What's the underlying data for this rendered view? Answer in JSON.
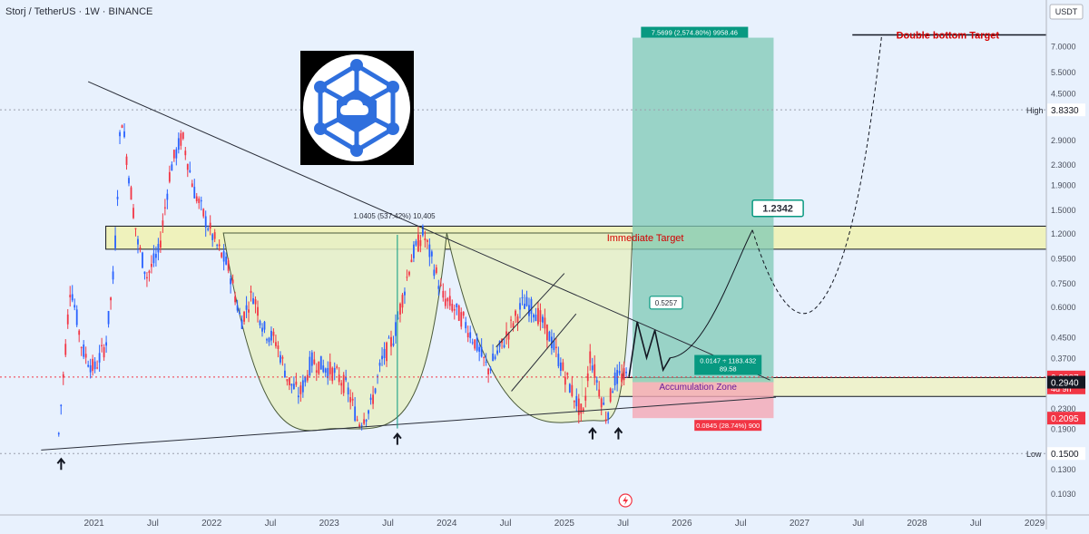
{
  "header": {
    "symbol_line": "Storj / TetherUS · 1W · BINANCE",
    "currency": "USDT"
  },
  "colors": {
    "background": "#e8f1fd",
    "bull_candle": "#2962ff",
    "bear_candle": "#f23645",
    "target_zone_fill": "#f2f2a6",
    "profit_zone_fill": "#7fc8b4",
    "loss_zone_fill": "#f4a7b4",
    "cup_fill": "#e6f0c6",
    "trendline": "#2a2e39",
    "target_label": "#d50000",
    "badge_green": "#089981",
    "badge_red": "#f23645",
    "badge_black": "#131722"
  },
  "icons": {
    "logo": "storj-cloud-hexagon-logo",
    "bottom_markers": "arrow-up-icon",
    "event_marker": "lightning-icon"
  },
  "chart_data": {
    "type": "candlestick",
    "y_scale": "log",
    "ylim": [
      0.09,
      10.8
    ],
    "y_ticks": [
      "7.0000",
      "5.5000",
      "4.5000",
      "3.8330",
      "2.9000",
      "2.3000",
      "1.9000",
      "1.5000",
      "1.2000",
      "0.9500",
      "0.7500",
      "0.6000",
      "0.4500",
      "0.3700",
      "0.3087",
      "0.2940",
      "0.2300",
      "0.2095",
      "0.1900",
      "0.1500",
      "0.1300",
      "0.1030"
    ],
    "y_tick_values": [
      7.0,
      5.5,
      4.5,
      3.833,
      2.9,
      2.3,
      1.9,
      1.5,
      1.2,
      0.95,
      0.75,
      0.6,
      0.45,
      0.37,
      0.3087,
      0.294,
      0.23,
      0.2095,
      0.19,
      0.15,
      0.13,
      0.103
    ],
    "x_ticks": [
      "2021",
      "Jul",
      "2022",
      "Jul",
      "2023",
      "Jul",
      "2024",
      "Jul",
      "2025",
      "Jul",
      "2026",
      "Jul",
      "2027",
      "Jul",
      "2028",
      "Jul",
      "2029"
    ],
    "x_tick_values": [
      2021.0,
      2021.5,
      2022.0,
      2022.5,
      2023.0,
      2023.5,
      2024.0,
      2024.5,
      2025.0,
      2025.5,
      2026.0,
      2026.5,
      2027.0,
      2027.5,
      2028.0,
      2028.5,
      2029.0
    ],
    "xlim": [
      2020.2,
      2029.1
    ],
    "price_series": {
      "name": "STORJUSDT",
      "x": [
        2020.7,
        2020.8,
        2020.9,
        2021.0,
        2021.1,
        2021.17,
        2021.23,
        2021.3,
        2021.37,
        2021.45,
        2021.55,
        2021.65,
        2021.75,
        2021.85,
        2021.95,
        2022.05,
        2022.15,
        2022.25,
        2022.35,
        2022.45,
        2022.55,
        2022.65,
        2022.75,
        2022.85,
        2022.95,
        2023.05,
        2023.15,
        2023.25,
        2023.35,
        2023.45,
        2023.55,
        2023.6,
        2023.7,
        2023.8,
        2023.9,
        2023.97,
        2024.05,
        2024.15,
        2024.25,
        2024.35,
        2024.45,
        2024.55,
        2024.65,
        2024.75,
        2024.85,
        2024.92,
        2025.0,
        2025.08,
        2025.16,
        2025.22,
        2025.3,
        2025.36,
        2025.42,
        2025.48,
        2025.54
      ],
      "y": [
        0.18,
        0.75,
        0.4,
        0.33,
        0.42,
        0.85,
        3.8,
        2.0,
        1.1,
        0.8,
        1.0,
        2.2,
        3.0,
        1.8,
        1.35,
        1.05,
        0.85,
        0.52,
        0.68,
        0.48,
        0.43,
        0.3,
        0.26,
        0.36,
        0.34,
        0.32,
        0.28,
        0.2,
        0.23,
        0.36,
        0.45,
        0.58,
        0.95,
        1.2,
        0.85,
        0.65,
        0.6,
        0.52,
        0.42,
        0.33,
        0.4,
        0.5,
        0.62,
        0.58,
        0.48,
        0.4,
        0.32,
        0.26,
        0.21,
        0.38,
        0.27,
        0.21,
        0.3,
        0.31,
        0.3087
      ]
    },
    "projection_path": {
      "x": [
        2025.55,
        2025.62,
        2025.7,
        2025.77,
        2025.84,
        2025.9,
        2026.0,
        2026.3,
        2026.6,
        2026.85,
        2027.1,
        2027.35,
        2027.55,
        2027.7
      ],
      "y": [
        0.3087,
        0.52,
        0.37,
        0.48,
        0.33,
        0.37,
        0.5,
        1.0,
        1.2342,
        0.75,
        0.57,
        0.95,
        2.5,
        7.7693
      ]
    },
    "levels": [
      {
        "name": "High",
        "value": 3.833,
        "label": "3.8330"
      },
      {
        "name": "Low",
        "value": 0.15,
        "label": "0.1500"
      },
      {
        "name": "Double bottom Target",
        "value": 7.7693,
        "label": "7.7693"
      },
      {
        "name": "last price",
        "value": 0.3087,
        "label": "0.3087",
        "countdown": "4d 9h"
      },
      {
        "name": "entry",
        "value": 0.294,
        "label": "0.2940"
      },
      {
        "name": "stop",
        "value": 0.2095,
        "label": "0.2095"
      }
    ],
    "zones": [
      {
        "label": "Immediate Target",
        "from": 1.03,
        "to": 1.28,
        "x_from": 2021.1,
        "x_to": 2029.1
      },
      {
        "label": "Accumulation Zone",
        "from": 0.257,
        "to": 0.307,
        "x_from": 2025.15,
        "x_to": 2029.1
      }
    ],
    "trade": {
      "entry": 0.294,
      "target": 7.5699,
      "stop": 0.2095,
      "profit_label": "7.5699 (2,574.80%) 9958.46",
      "loss_label": "0.0845 (28.74%) 900",
      "entry_label_line1": "0.0147 ÷ 1183.432",
      "entry_label_line2": "89.58"
    },
    "annotations": [
      {
        "text": "1.0405 (537.42%) 10,405",
        "x": 2023.9,
        "y": 1.5
      },
      {
        "text": "1.2342",
        "x": 2026.6,
        "y": 1.2342
      },
      {
        "text": "0.5257",
        "x": 2025.68,
        "y": 0.52
      },
      {
        "text": "Double bottom Target",
        "x": 2027.8,
        "y": 7.7693
      },
      {
        "text": "Immediate Target",
        "x": 2025.3,
        "y": 1.15
      },
      {
        "text": "Accumulation Zone",
        "x": 2026.0,
        "y": 0.28
      }
    ],
    "bottom_arrows": [
      {
        "x": 2020.72,
        "y": 0.15
      },
      {
        "x": 2023.58,
        "y": 0.19
      },
      {
        "x": 2025.24,
        "y": 0.2
      },
      {
        "x": 2025.46,
        "y": 0.2
      }
    ],
    "trendlines": [
      {
        "name": "upper resistance",
        "x": [
          2020.95,
          2026.75
        ],
        "y": [
          5.0,
          0.3
        ]
      },
      {
        "name": "lower support",
        "x": [
          2020.55,
          2026.8
        ],
        "y": [
          0.155,
          0.255
        ]
      },
      {
        "name": "channel upper",
        "x": [
          2024.42,
          2025.0
        ],
        "y": [
          0.41,
          0.82
        ]
      },
      {
        "name": "channel lower",
        "x": [
          2024.55,
          2025.1
        ],
        "y": [
          0.27,
          0.56
        ]
      }
    ],
    "cups": [
      {
        "name": "large cup",
        "x_from": 2022.1,
        "x_to": 2024.0,
        "bottom_x": 2023.05,
        "bottom_y": 0.19,
        "rim_y": 1.2
      },
      {
        "name": "small cup",
        "x_from": 2024.0,
        "x_to": 2025.58,
        "bottom_x": 2025.25,
        "bottom_y": 0.205,
        "rim_y": 1.2
      }
    ]
  }
}
